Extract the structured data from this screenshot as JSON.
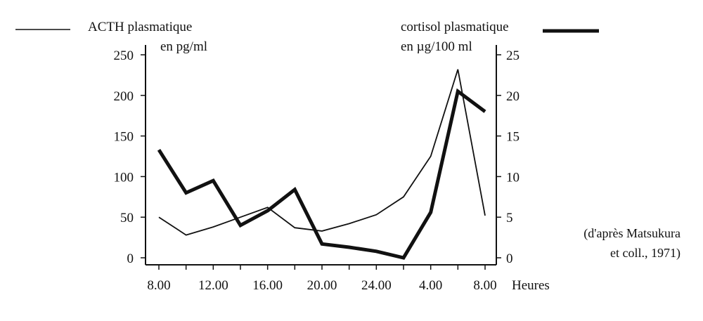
{
  "chart_data": {
    "type": "line",
    "x_ticks": [
      "8.00",
      "12.00",
      "16.00",
      "20.00",
      "24.00",
      "4.00",
      "8.00"
    ],
    "x_unit": "Heures",
    "x": [
      8,
      10,
      12,
      14,
      16,
      18,
      20,
      22,
      24,
      26,
      28,
      30,
      32
    ],
    "left_axis": {
      "label_line1": "ACTH plasmatique",
      "label_line2": "en pg/ml",
      "ylim": [
        0,
        250
      ],
      "ticks": [
        "0",
        "50",
        "100",
        "150",
        "200",
        "250"
      ]
    },
    "right_axis": {
      "label_line1": "cortisol plasmatique",
      "label_line2": "en µg/100 ml",
      "ylim": [
        0,
        25
      ],
      "ticks": [
        "0",
        "5",
        "10",
        "15",
        "20",
        "25"
      ]
    },
    "series": [
      {
        "name": "ACTH plasmatique",
        "axis": "left",
        "style": "thin",
        "values": [
          50,
          28,
          38,
          50,
          62,
          37,
          33,
          42,
          53,
          75,
          125,
          232,
          52
        ]
      },
      {
        "name": "cortisol plasmatique",
        "axis": "right",
        "style": "thick",
        "values": [
          13.3,
          8.0,
          9.5,
          4.0,
          5.8,
          8.4,
          1.7,
          1.3,
          0.8,
          0.0,
          5.6,
          20.5,
          18.0
        ]
      }
    ],
    "annotation_line1": "(d'après Matsukura",
    "annotation_line2": "et coll., 1971)",
    "colors": {
      "ink": "#111111",
      "background": "#ffffff"
    },
    "grid": false
  }
}
